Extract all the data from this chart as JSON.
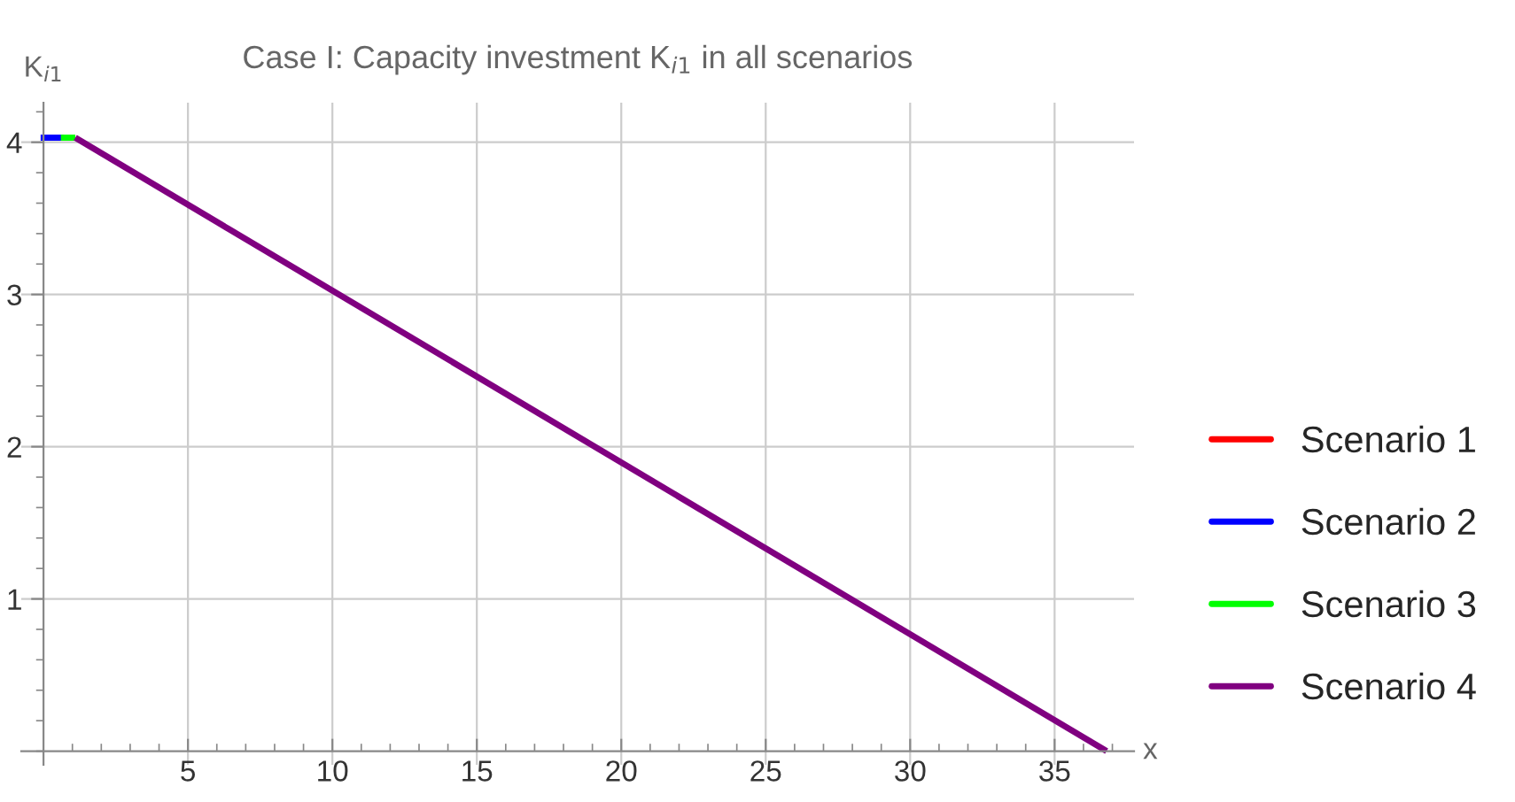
{
  "chart_data": {
    "type": "line",
    "title": "Case I: Capacity investment K$_{i1}$ in all scenarios",
    "xlabel": "x",
    "ylabel": "K$_{i1}$",
    "series": [
      {
        "name": "Scenario 1",
        "color": "#ff0000"
      },
      {
        "name": "Scenario 2",
        "color": "#0000ff",
        "x": [
          -0.1,
          0.7
        ],
        "values": [
          4.03,
          4.03
        ]
      },
      {
        "name": "Scenario 3",
        "color": "#00ff00",
        "x": [
          0.6,
          1.1
        ],
        "values": [
          4.03,
          4.03
        ]
      },
      {
        "name": "Scenario 4",
        "color": "#800080",
        "x": [
          1.1,
          36.8
        ],
        "values": [
          4.03,
          0
        ]
      }
    ],
    "xlim": [
      -0.77,
      37.75
    ],
    "ylim": [
      -0.09,
      4.26
    ],
    "xticks": [
      5,
      10,
      15,
      20,
      25,
      30,
      35
    ],
    "yticks": [
      1,
      2,
      3,
      4
    ],
    "grid": true,
    "legend": "right",
    "line_style": "solid",
    "marker": "none"
  }
}
